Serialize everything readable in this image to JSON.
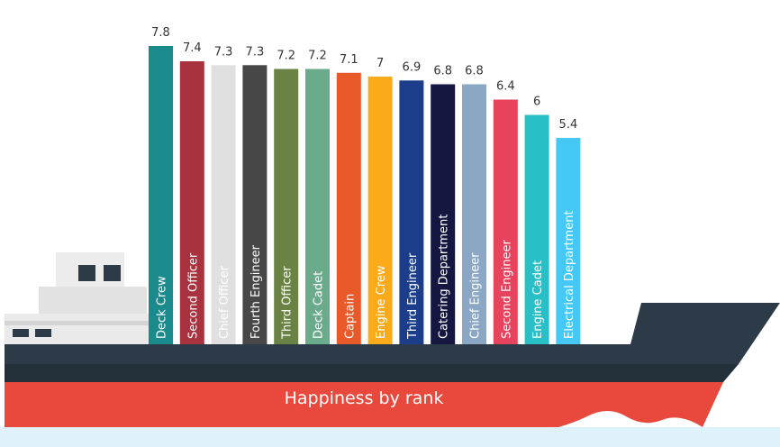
{
  "chart_data": {
    "type": "bar",
    "title": "Happiness by rank",
    "categories": [
      "Deck Crew",
      "Second Officer",
      "Chief Officer",
      "Fourth Engineer",
      "Third Officer",
      "Deck Cadet",
      "Captain",
      "Engine Crew",
      "Third Engineer",
      "Catering Department",
      "Chief Engineer",
      "Second Engineer",
      "Engine Cadet",
      "Electrical Department"
    ],
    "values": [
      7.8,
      7.4,
      7.3,
      7.3,
      7.2,
      7.2,
      7.1,
      7,
      6.9,
      6.8,
      6.8,
      6.4,
      6,
      5.4
    ],
    "colors": [
      "#1a8a8c",
      "#a8323e",
      "#e0e0e0",
      "#474747",
      "#6a8344",
      "#6aab8c",
      "#e95a2a",
      "#fbab19",
      "#1c3e8a",
      "#161741",
      "#8aa8c6",
      "#e8435d",
      "#29bfc7",
      "#44c8f5"
    ],
    "xlabel": "",
    "ylabel": "",
    "ylim": [
      0,
      8
    ],
    "grid": false,
    "legend": "none"
  }
}
